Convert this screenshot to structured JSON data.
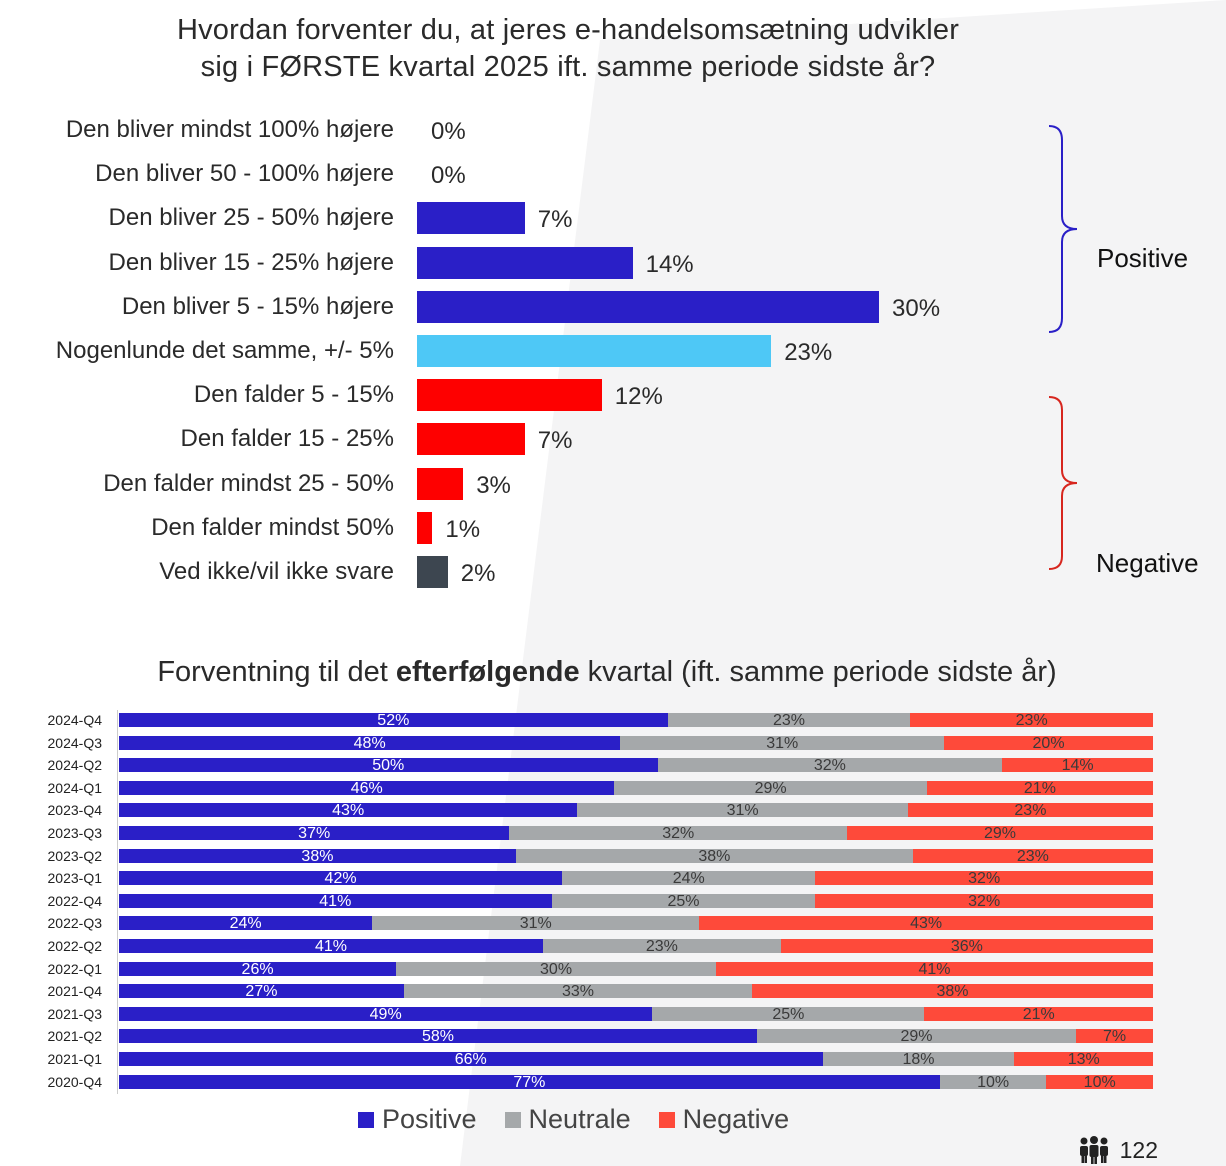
{
  "colors": {
    "positive": "#2a1fc7",
    "neutral_top": "#4ec8f6",
    "negative": "#fe0000",
    "unknown": "#3d4650",
    "neutral_bottom": "#a5a8aa",
    "negative_bottom": "#fe4a3a",
    "bracket_positive": "#2a1fc7",
    "bracket_negative": "#d7261e"
  },
  "top_chart": {
    "title_line1": "Hvordan forventer du, at jeres e-handelsomsætning udvikler",
    "title_line2": "sig i FØRSTE kvartal 2025 ift. samme periode sidste år?",
    "positive_label": "Positive",
    "negative_label": "Negative"
  },
  "bottom_chart": {
    "title_pre": "Forventning til det ",
    "title_bold": "efterfølgende",
    "title_post": " kvartal (ift. samme periode sidste år)"
  },
  "legend": [
    {
      "label": "Positive",
      "color": "#2a1fc7"
    },
    {
      "label": "Neutrale",
      "color": "#a5a8aa"
    },
    {
      "label": "Negative",
      "color": "#fe4a3a"
    }
  ],
  "page_number": "122",
  "chart_data": [
    {
      "type": "bar",
      "orientation": "horizontal",
      "title": "Hvordan forventer du, at jeres e-handelsomsætning udvikler sig i FØRSTE kvartal 2025 ift. samme periode sidste år?",
      "categories": [
        "Den bliver mindst 100% højere",
        "Den bliver 50 - 100% højere",
        "Den bliver 25 - 50% højere",
        "Den bliver 15 - 25% højere",
        "Den bliver 5 - 15% højere",
        "Nogenlunde det samme, +/- 5%",
        "Den falder 5 - 15%",
        "Den falder 15 - 25%",
        "Den falder mindst 25 - 50%",
        "Den falder mindst 50%",
        "Ved ikke/vil ikke svare"
      ],
      "values": [
        0,
        0,
        7,
        14,
        30,
        23,
        12,
        7,
        3,
        1,
        2
      ],
      "value_labels": [
        "0%",
        "0%",
        "7%",
        "14%",
        "30%",
        "23%",
        "12%",
        "7%",
        "3%",
        "1%",
        "2%"
      ],
      "bar_groups": [
        "positive",
        "positive",
        "positive",
        "positive",
        "positive",
        "neutral",
        "negative",
        "negative",
        "negative",
        "negative",
        "unknown"
      ],
      "brackets": [
        {
          "label": "Positive",
          "from": 0,
          "to": 4
        },
        {
          "label": "Negative",
          "from": 6,
          "to": 10
        }
      ]
    },
    {
      "type": "bar",
      "orientation": "horizontal",
      "stacked": true,
      "title": "Forventning til det efterfølgende kvartal (ift. samme periode sidste år)",
      "categories": [
        "2024-Q4",
        "2024-Q3",
        "2024-Q2",
        "2024-Q1",
        "2023-Q4",
        "2023-Q3",
        "2023-Q2",
        "2023-Q1",
        "2022-Q4",
        "2022-Q3",
        "2022-Q2",
        "2022-Q1",
        "2021-Q4",
        "2021-Q3",
        "2021-Q2",
        "2021-Q1",
        "2020-Q4"
      ],
      "series": [
        {
          "name": "Positive",
          "values": [
            52,
            48,
            50,
            46,
            43,
            37,
            38,
            42,
            41,
            24,
            41,
            26,
            27,
            49,
            58,
            66,
            77
          ]
        },
        {
          "name": "Neutrale",
          "values": [
            23,
            31,
            32,
            29,
            31,
            32,
            38,
            24,
            25,
            31,
            23,
            30,
            33,
            25,
            29,
            18,
            10
          ]
        },
        {
          "name": "Negative",
          "values": [
            23,
            20,
            14,
            21,
            23,
            29,
            23,
            32,
            32,
            43,
            36,
            41,
            38,
            21,
            7,
            13,
            10
          ]
        }
      ],
      "legend": "bottom"
    }
  ]
}
